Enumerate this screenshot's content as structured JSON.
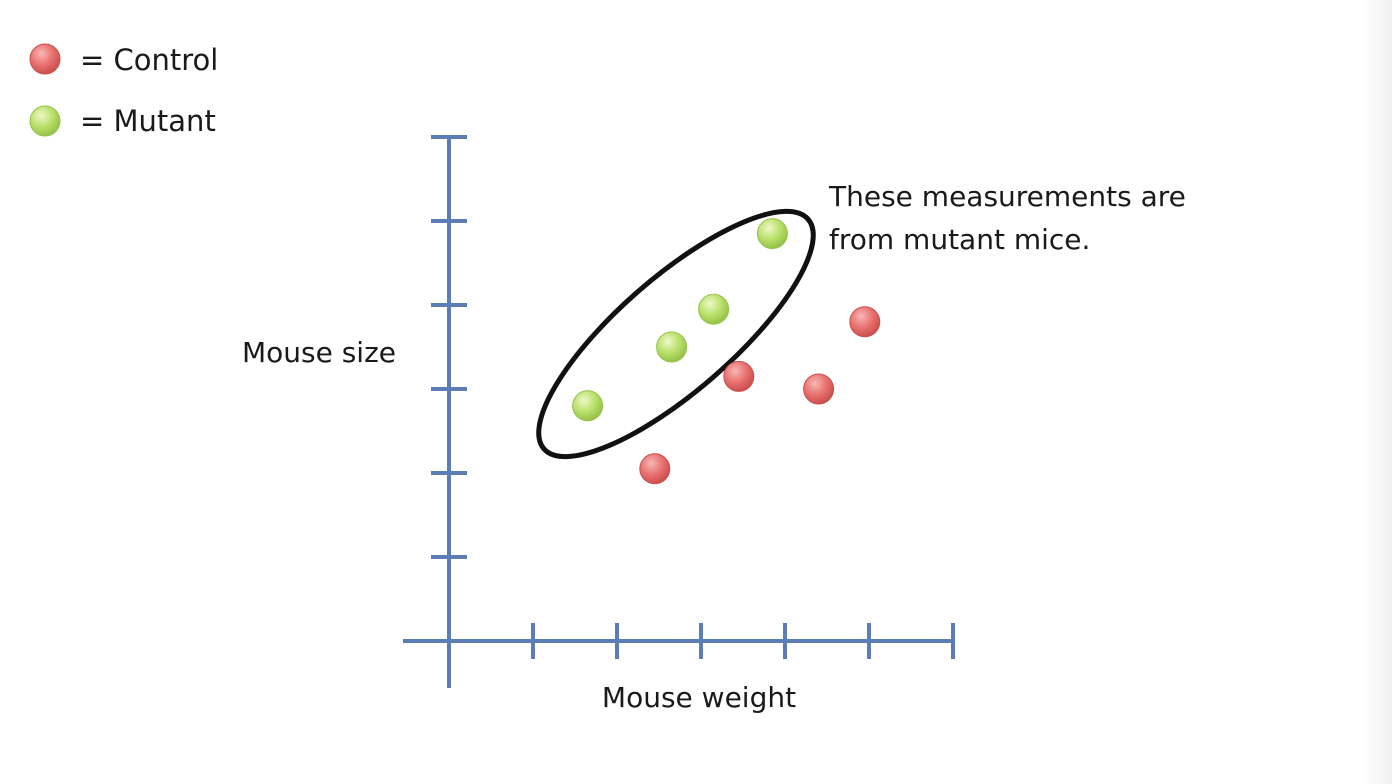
{
  "legend": [
    {
      "label": "= Control",
      "color": "#e8706e"
    },
    {
      "label": "= Mutant",
      "color": "#b9e06a"
    }
  ],
  "annotation": {
    "lines": [
      "These measurements are",
      "from mutant mice."
    ],
    "encircles_series": "Mutant"
  },
  "colors": {
    "axis": "#5b7db8",
    "ellipse": "#111111",
    "control": "#e8706e",
    "mutant": "#b9e06a"
  },
  "chart_data": {
    "type": "scatter",
    "title": "",
    "xlabel": "Mouse weight",
    "ylabel": "Mouse size",
    "xlim": [
      0,
      6
    ],
    "ylim": [
      0,
      6
    ],
    "x_ticks": [
      1,
      2,
      3,
      4,
      5,
      6
    ],
    "y_ticks": [
      1,
      2,
      3,
      4,
      5,
      6
    ],
    "tick_labels_shown": false,
    "grid": false,
    "legend_position": "top-left",
    "series": [
      {
        "name": "Control",
        "color": "#e8706e",
        "points": [
          [
            2.45,
            2.05
          ],
          [
            3.45,
            3.15
          ],
          [
            4.4,
            3.0
          ],
          [
            4.95,
            3.8
          ]
        ]
      },
      {
        "name": "Mutant",
        "color": "#b9e06a",
        "points": [
          [
            1.65,
            2.8
          ],
          [
            2.65,
            3.5
          ],
          [
            3.15,
            3.95
          ],
          [
            3.85,
            4.85
          ]
        ]
      }
    ]
  }
}
